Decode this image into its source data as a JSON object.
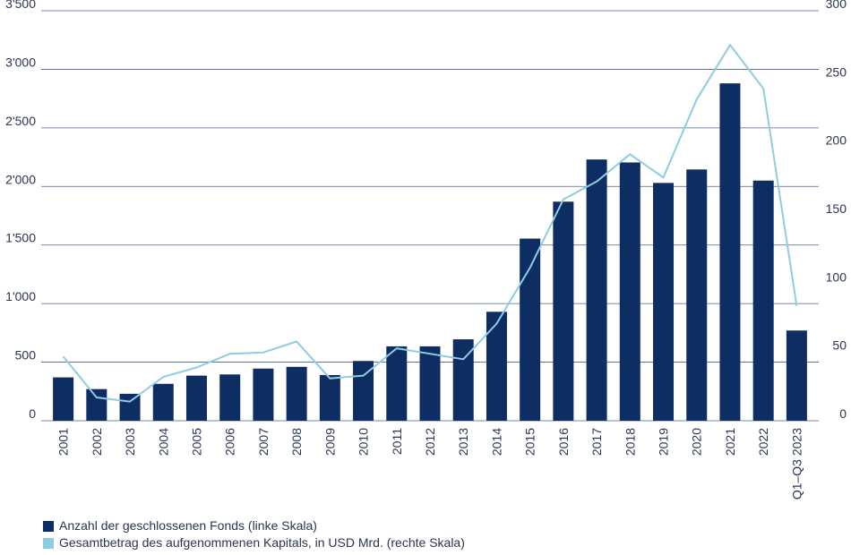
{
  "chart_data": {
    "type": "bar",
    "categories": [
      "2001",
      "2002",
      "2003",
      "2004",
      "2005",
      "2006",
      "2007",
      "2008",
      "2009",
      "2010",
      "2011",
      "2012",
      "2013",
      "2014",
      "2015",
      "2016",
      "2017",
      "2018",
      "2019",
      "2020",
      "2021",
      "2022",
      "Q1–Q3 2023"
    ],
    "series": [
      {
        "name": "Anzahl der geschlossenen Fonds (linke Skala)",
        "type": "bar",
        "axis": "left",
        "color": "#0d2d63",
        "values": [
          370,
          270,
          230,
          315,
          385,
          395,
          445,
          460,
          390,
          510,
          635,
          635,
          695,
          930,
          1555,
          1870,
          2230,
          2205,
          2030,
          2145,
          2880,
          2050,
          770
        ]
      },
      {
        "name": "Gesamtbetrag des aufgenommenen Kapitals, in USD Mrd. (rechte Skala)",
        "type": "line",
        "axis": "right",
        "color": "#8ecde0",
        "values": [
          47,
          17,
          14,
          32,
          39,
          49,
          50,
          58,
          31,
          33,
          53,
          49,
          45,
          71,
          112,
          162,
          175,
          195,
          178,
          235,
          275,
          243,
          84
        ]
      }
    ],
    "left_axis": {
      "ylim": [
        0,
        3500
      ],
      "ticks": [
        0,
        500,
        1000,
        1500,
        2000,
        2500,
        3000,
        3500
      ],
      "tick_labels": [
        "0",
        "500",
        "1'000",
        "1'500",
        "2'000",
        "2'500",
        "3'000",
        "3'500"
      ]
    },
    "right_axis": {
      "ylim": [
        0,
        300
      ],
      "ticks": [
        0,
        50,
        100,
        150,
        200,
        250,
        300
      ],
      "tick_labels": [
        "0",
        "50",
        "100",
        "150",
        "200",
        "250",
        "300"
      ]
    },
    "grid": true,
    "legend_position": "bottom-left"
  }
}
